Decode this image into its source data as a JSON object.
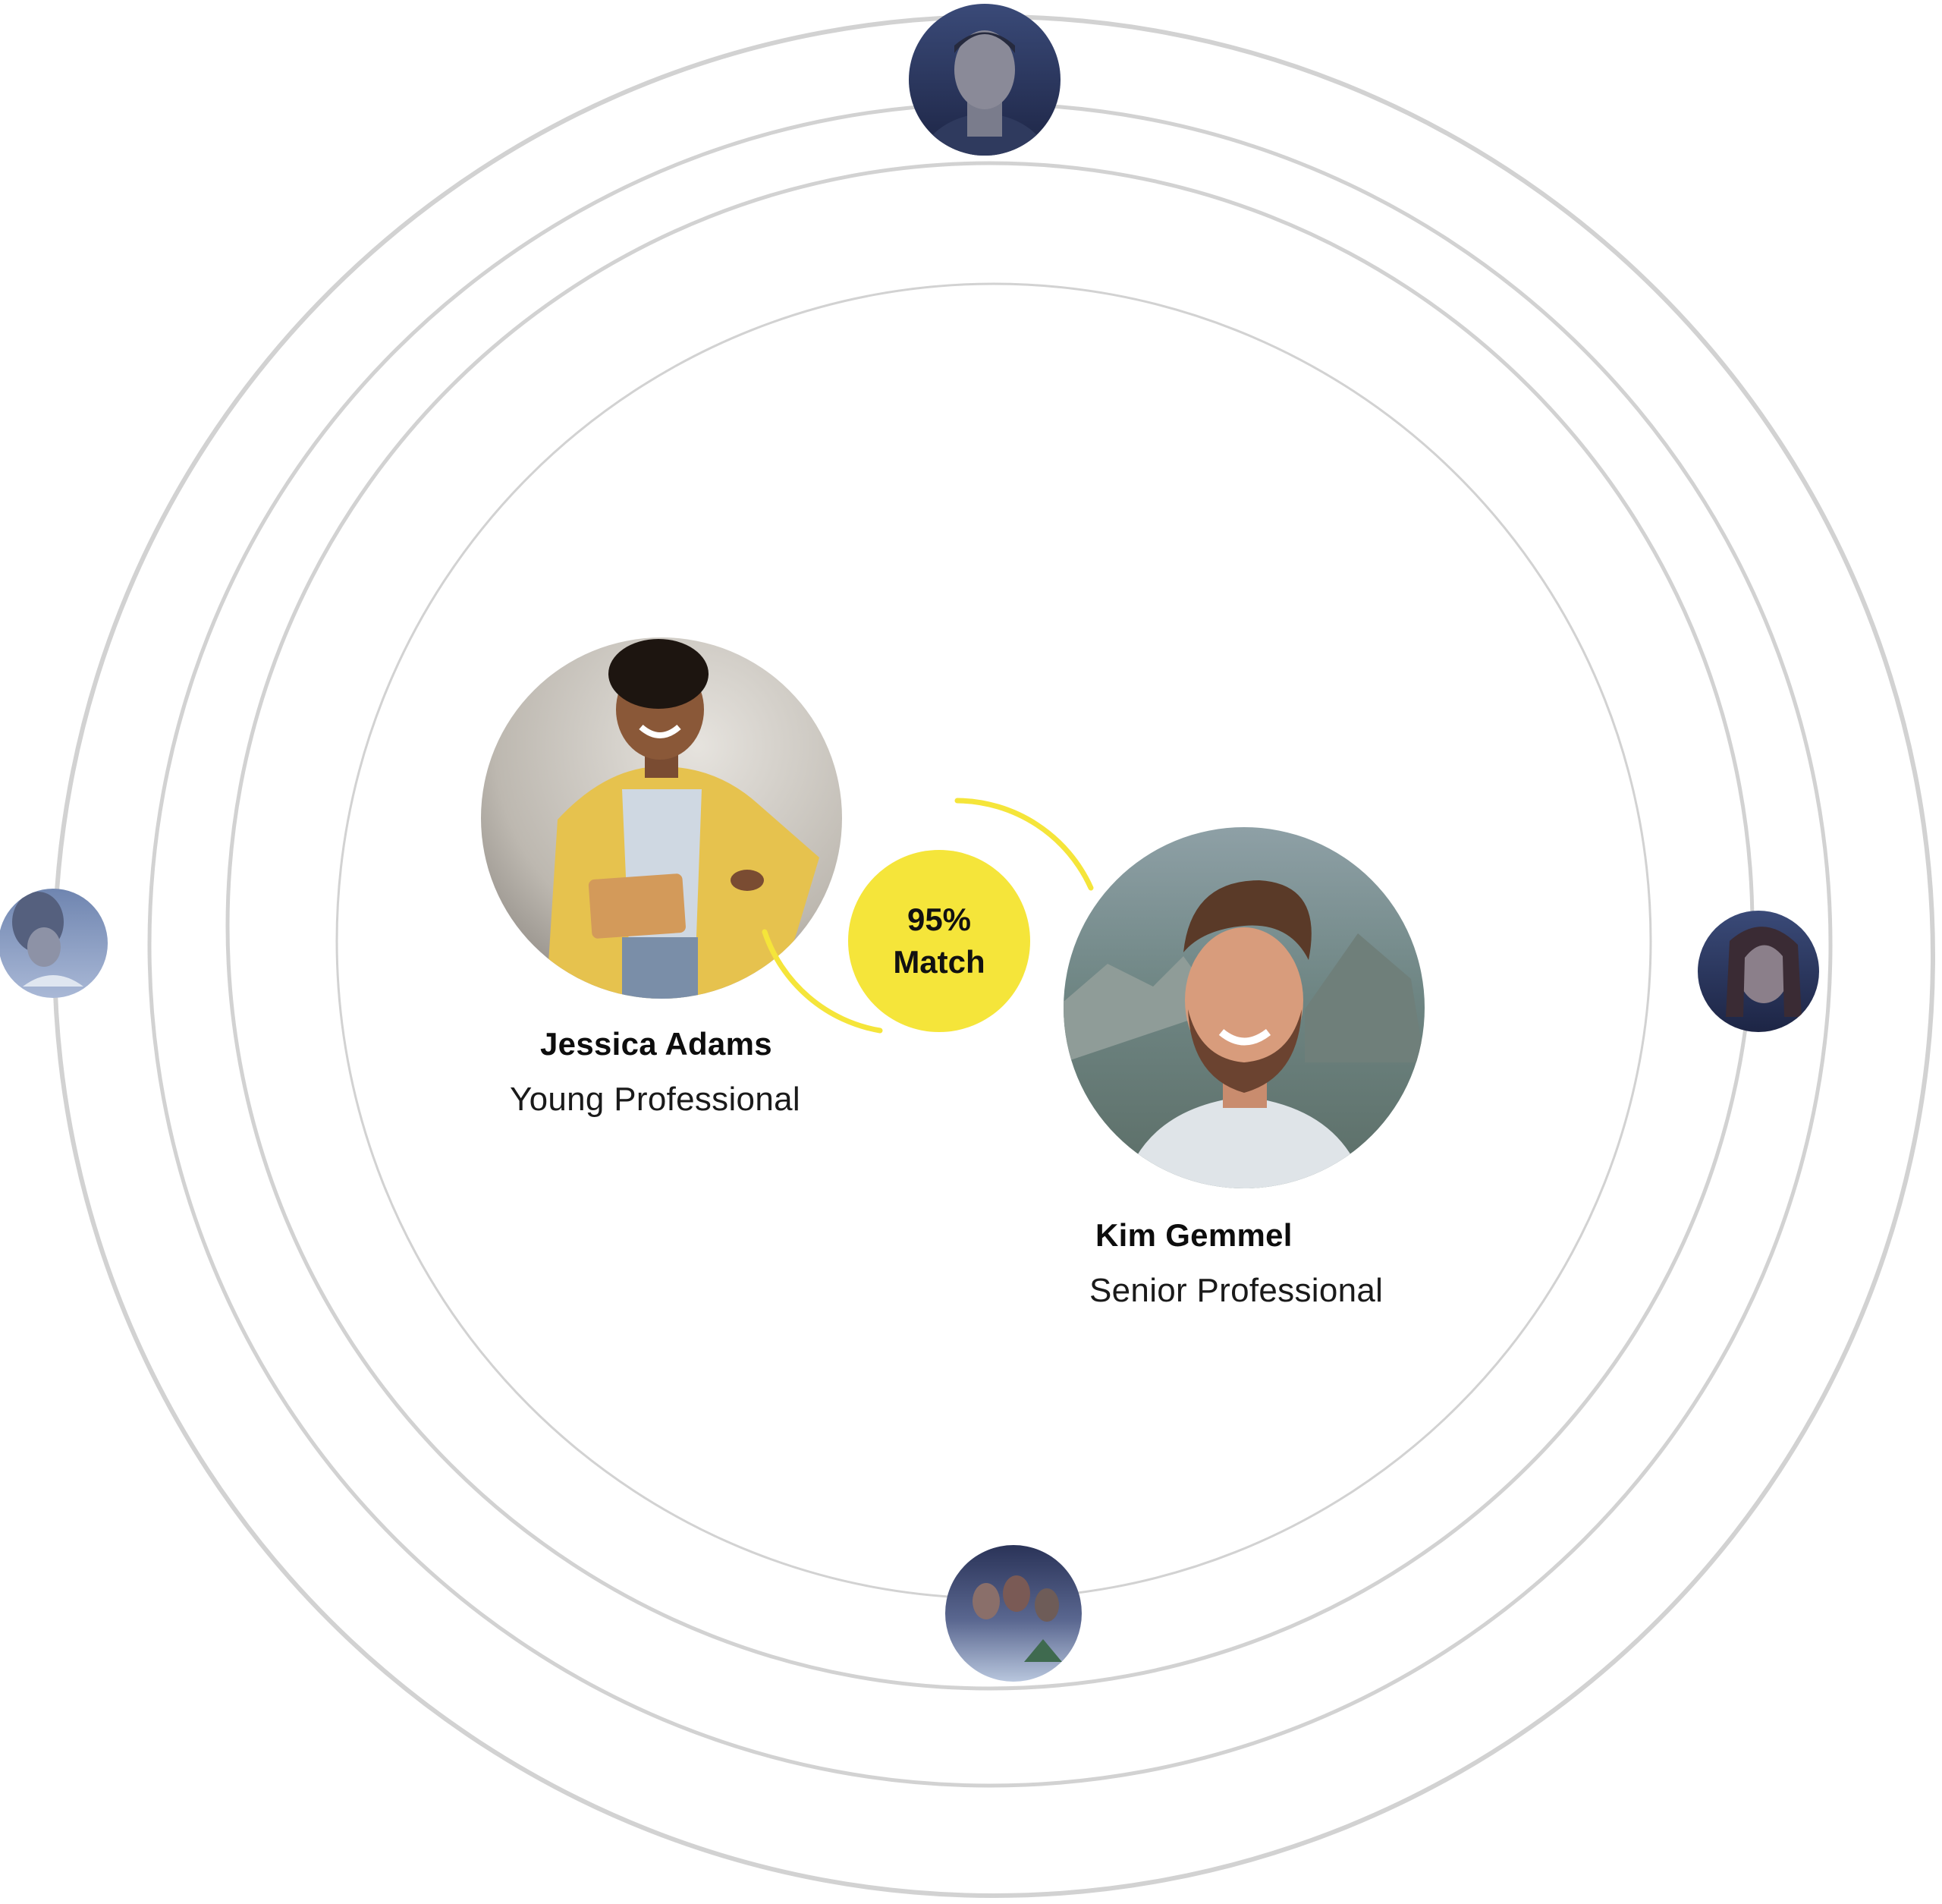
{
  "colors": {
    "orbit": "#d2d2d2",
    "accent_yellow": "#f5e53a",
    "text": "#0d0d0d",
    "avatar_tint": "#2a3a63"
  },
  "match": {
    "percent": "95%",
    "label": "Match"
  },
  "profiles": [
    {
      "name": "Jessica Adams",
      "role": "Young Professional"
    },
    {
      "name": "Kim Gemmel",
      "role": "Senior Professional"
    }
  ],
  "orbit_avatars": [
    {
      "position": "top"
    },
    {
      "position": "left"
    },
    {
      "position": "right"
    },
    {
      "position": "bottom"
    }
  ]
}
